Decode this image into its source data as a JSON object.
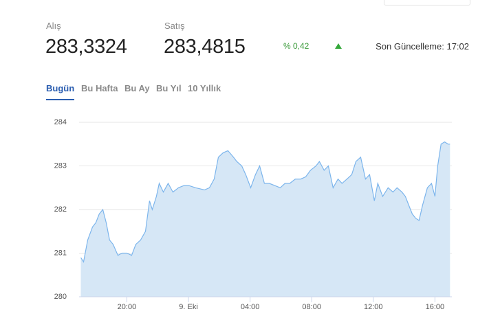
{
  "header": {
    "buy_label": "Alış",
    "buy_value": "283,3324",
    "sell_label": "Satış",
    "sell_value": "283,4815",
    "change": "% 0,42",
    "last_update": "Son Güncelleme: 17:02"
  },
  "tabs": {
    "items": [
      "Bugün",
      "Bu Hafta",
      "Bu Ay",
      "Bu Yıl",
      "10 Yıllık"
    ],
    "active": 0
  },
  "chart_data": {
    "type": "area",
    "color": "#7cb5ec",
    "fill": "#d6e7f6",
    "grid": true,
    "x": [
      17.01,
      17.19,
      17.46,
      17.77,
      17.99,
      18.21,
      18.44,
      18.66,
      18.88,
      19.11,
      19.42,
      19.69,
      20.0,
      20.31,
      20.58,
      20.89,
      21.21,
      21.47,
      21.65,
      21.92,
      22.1,
      22.37,
      22.68,
      22.99,
      23.35,
      23.71,
      24.02,
      24.46,
      25.05,
      25.36,
      25.67,
      25.94,
      26.25,
      26.56,
      26.92,
      27.14,
      27.46,
      27.72,
      28.04,
      28.35,
      28.62,
      28.93,
      29.24,
      29.6,
      29.96,
      30.27,
      30.58,
      30.94,
      31.29,
      31.61,
      31.92,
      32.28,
      32.5,
      32.81,
      33.08,
      33.39,
      33.71,
      33.97,
      34.29,
      34.6,
      34.87,
      35.18,
      35.49,
      35.76,
      36.07,
      36.29,
      36.61,
      36.96,
      37.28,
      37.54,
      37.86,
      38.08,
      38.3,
      38.53,
      38.75,
      38.97,
      39.2,
      39.51,
      39.78,
      40.0,
      40.18,
      40.4,
      40.63,
      40.85,
      40.98
    ],
    "values": [
      280.9,
      280.8,
      281.3,
      281.6,
      281.7,
      281.9,
      282.0,
      281.7,
      281.3,
      281.2,
      280.95,
      281.0,
      281.0,
      280.95,
      281.2,
      281.3,
      281.5,
      282.2,
      282.0,
      282.3,
      282.6,
      282.4,
      282.6,
      282.4,
      282.5,
      282.55,
      282.55,
      282.5,
      282.45,
      282.5,
      282.7,
      283.2,
      283.3,
      283.35,
      283.2,
      283.1,
      283.0,
      282.8,
      282.5,
      282.8,
      283.0,
      282.6,
      282.6,
      282.55,
      282.5,
      282.6,
      282.6,
      282.7,
      282.7,
      282.75,
      282.9,
      283.0,
      283.1,
      282.9,
      283.0,
      282.5,
      282.7,
      282.6,
      282.7,
      282.8,
      283.1,
      283.2,
      282.7,
      282.8,
      282.2,
      282.6,
      282.3,
      282.5,
      282.4,
      282.5,
      282.4,
      282.3,
      282.1,
      281.9,
      281.8,
      281.75,
      282.1,
      282.5,
      282.6,
      282.3,
      283.0,
      283.5,
      283.55,
      283.5,
      283.5
    ],
    "xlim": [
      16.9,
      41.1
    ],
    "xticks": [
      {
        "value": 20,
        "label": "20:00"
      },
      {
        "value": 24,
        "label": "9. Eki"
      },
      {
        "value": 28,
        "label": "04:00"
      },
      {
        "value": 32,
        "label": "08:00"
      },
      {
        "value": 36,
        "label": "12:00"
      },
      {
        "value": 40,
        "label": "16:00"
      }
    ],
    "ylim": [
      280,
      284
    ],
    "yticks": [
      280,
      281,
      282,
      283,
      284
    ]
  }
}
